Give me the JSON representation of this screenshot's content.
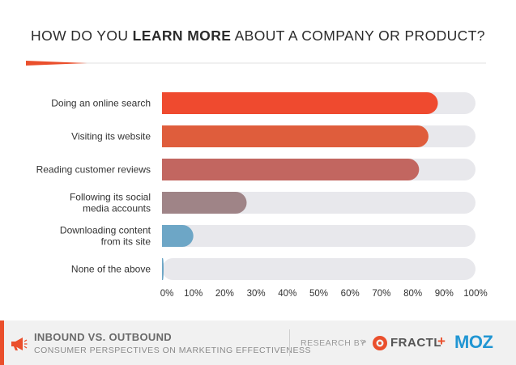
{
  "chart_data": {
    "type": "bar",
    "orientation": "horizontal",
    "title_parts": [
      "HOW DO YOU ",
      "LEARN MORE",
      " ABOUT A COMPANY OR PRODUCT?"
    ],
    "categories": [
      [
        "Doing an online search"
      ],
      [
        "Visiting its website"
      ],
      [
        "Reading customer reviews"
      ],
      [
        "Following its social",
        "media accounts"
      ],
      [
        "Downloading content",
        "from its site"
      ],
      [
        "None of the above"
      ]
    ],
    "values": [
      88,
      85,
      82,
      27,
      10,
      0.5
    ],
    "bar_colors": [
      "#ef4a2f",
      "#df5d3c",
      "#c26660",
      "#9f8487",
      "#6da6c6",
      "#6da6c6"
    ],
    "track_color": "#e8e8ec",
    "xlim": [
      0,
      100
    ],
    "xticks": [
      "0%",
      "10%",
      "20%",
      "30%",
      "40%",
      "50%",
      "60%",
      "70%",
      "80%",
      "90%",
      "100%"
    ],
    "grid": false,
    "legend": "none"
  },
  "footer": {
    "title": "INBOUND VS. OUTBOUND",
    "subtitle": "CONSUMER PERSPECTIVES ON MARKETING EFFECTIVENESS",
    "research_by": "RESEARCH BY",
    "arrow": ">",
    "fractl": "FRACTL",
    "plus": "+",
    "moz": "MOZ",
    "icons": [
      "megaphone-icon",
      "fractl-logo-icon"
    ]
  },
  "colors": {
    "accent": "#ea4f2c",
    "moz": "#2196d3"
  }
}
